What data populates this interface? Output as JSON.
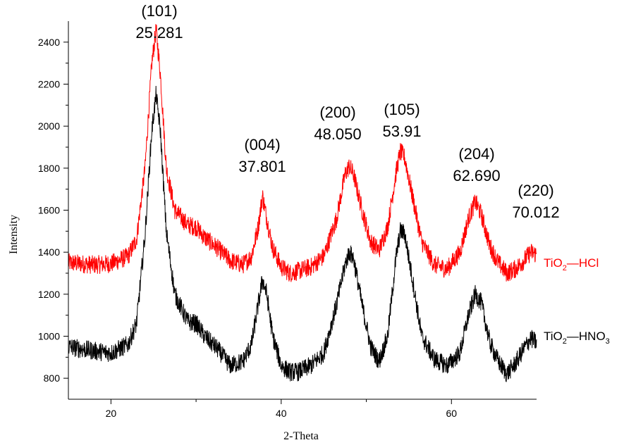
{
  "chart_data": {
    "type": "line",
    "title": "",
    "xlabel": "2-Theta",
    "ylabel": "Intensity",
    "xlim": [
      15,
      70
    ],
    "ylim": [
      700,
      2500
    ],
    "x_ticks": [
      20,
      40,
      60
    ],
    "y_ticks": [
      800,
      1000,
      1200,
      1400,
      1600,
      1800,
      2000,
      2200,
      2400
    ],
    "grid": false,
    "series": [
      {
        "name_html": [
          "TiO",
          "2",
          "—HCl"
        ],
        "color": "#ff0000",
        "baseline": 1340,
        "noise": 45,
        "points": [
          [
            15,
            1350
          ],
          [
            18,
            1340
          ],
          [
            20,
            1345
          ],
          [
            22,
            1380
          ],
          [
            23,
            1460
          ],
          [
            24,
            1800
          ],
          [
            24.8,
            2300
          ],
          [
            25.3,
            2460
          ],
          [
            25.8,
            2250
          ],
          [
            26.5,
            1800
          ],
          [
            27.5,
            1600
          ],
          [
            29,
            1530
          ],
          [
            30,
            1520
          ],
          [
            31,
            1470
          ],
          [
            32.5,
            1420
          ],
          [
            34,
            1360
          ],
          [
            35.5,
            1340
          ],
          [
            36.5,
            1380
          ],
          [
            37.3,
            1520
          ],
          [
            37.8,
            1670
          ],
          [
            38.3,
            1560
          ],
          [
            39,
            1420
          ],
          [
            40,
            1330
          ],
          [
            41,
            1300
          ],
          [
            42,
            1310
          ],
          [
            43.5,
            1330
          ],
          [
            45,
            1380
          ],
          [
            46.5,
            1560
          ],
          [
            47.5,
            1770
          ],
          [
            48,
            1810
          ],
          [
            48.5,
            1770
          ],
          [
            49.5,
            1600
          ],
          [
            50.5,
            1450
          ],
          [
            51.5,
            1410
          ],
          [
            52.5,
            1520
          ],
          [
            53.5,
            1780
          ],
          [
            54,
            1880
          ],
          [
            54.5,
            1850
          ],
          [
            55.5,
            1650
          ],
          [
            56.5,
            1450
          ],
          [
            58,
            1340
          ],
          [
            59.5,
            1320
          ],
          [
            61,
            1400
          ],
          [
            62,
            1560
          ],
          [
            62.8,
            1640
          ],
          [
            63.5,
            1580
          ],
          [
            64.5,
            1430
          ],
          [
            65.5,
            1350
          ],
          [
            66.5,
            1300
          ],
          [
            67.5,
            1320
          ],
          [
            68.5,
            1360
          ],
          [
            69.3,
            1400
          ],
          [
            70,
            1390
          ]
        ]
      },
      {
        "name_html": [
          "TiO",
          "2",
          "—HNO",
          "3"
        ],
        "color": "#000000",
        "baseline": 930,
        "noise": 45,
        "points": [
          [
            15,
            950
          ],
          [
            18,
            930
          ],
          [
            20,
            920
          ],
          [
            22,
            960
          ],
          [
            23,
            1060
          ],
          [
            24,
            1480
          ],
          [
            24.8,
            1980
          ],
          [
            25.3,
            2150
          ],
          [
            25.8,
            1980
          ],
          [
            26.5,
            1500
          ],
          [
            27.5,
            1200
          ],
          [
            29,
            1070
          ],
          [
            30,
            1060
          ],
          [
            31,
            1000
          ],
          [
            32.5,
            940
          ],
          [
            34,
            860
          ],
          [
            35.5,
            880
          ],
          [
            36.5,
            960
          ],
          [
            37.3,
            1150
          ],
          [
            37.8,
            1270
          ],
          [
            38.3,
            1200
          ],
          [
            39,
            1000
          ],
          [
            40,
            860
          ],
          [
            41,
            830
          ],
          [
            42,
            830
          ],
          [
            43.5,
            860
          ],
          [
            45,
            920
          ],
          [
            46.5,
            1150
          ],
          [
            47.5,
            1340
          ],
          [
            48,
            1400
          ],
          [
            48.5,
            1370
          ],
          [
            49.5,
            1150
          ],
          [
            50.5,
            950
          ],
          [
            51.5,
            880
          ],
          [
            52.5,
            1000
          ],
          [
            53.5,
            1380
          ],
          [
            54,
            1500
          ],
          [
            54.5,
            1490
          ],
          [
            55.5,
            1250
          ],
          [
            56.5,
            1000
          ],
          [
            58,
            890
          ],
          [
            59.5,
            860
          ],
          [
            61,
            920
          ],
          [
            62,
            1100
          ],
          [
            62.8,
            1200
          ],
          [
            63.5,
            1160
          ],
          [
            64.5,
            970
          ],
          [
            65.5,
            880
          ],
          [
            66.5,
            820
          ],
          [
            67.5,
            870
          ],
          [
            68.5,
            940
          ],
          [
            69.3,
            990
          ],
          [
            70,
            970
          ]
        ]
      }
    ],
    "peak_labels": [
      {
        "hkl": "(101)",
        "value": "25.281"
      },
      {
        "hkl": "(004)",
        "value": "37.801"
      },
      {
        "hkl": "(200)",
        "value": "48.050"
      },
      {
        "hkl": "(105)",
        "value": "53.91"
      },
      {
        "hkl": "(204)",
        "value": "62.690"
      },
      {
        "hkl": "(220)",
        "value": "70.012"
      }
    ]
  }
}
